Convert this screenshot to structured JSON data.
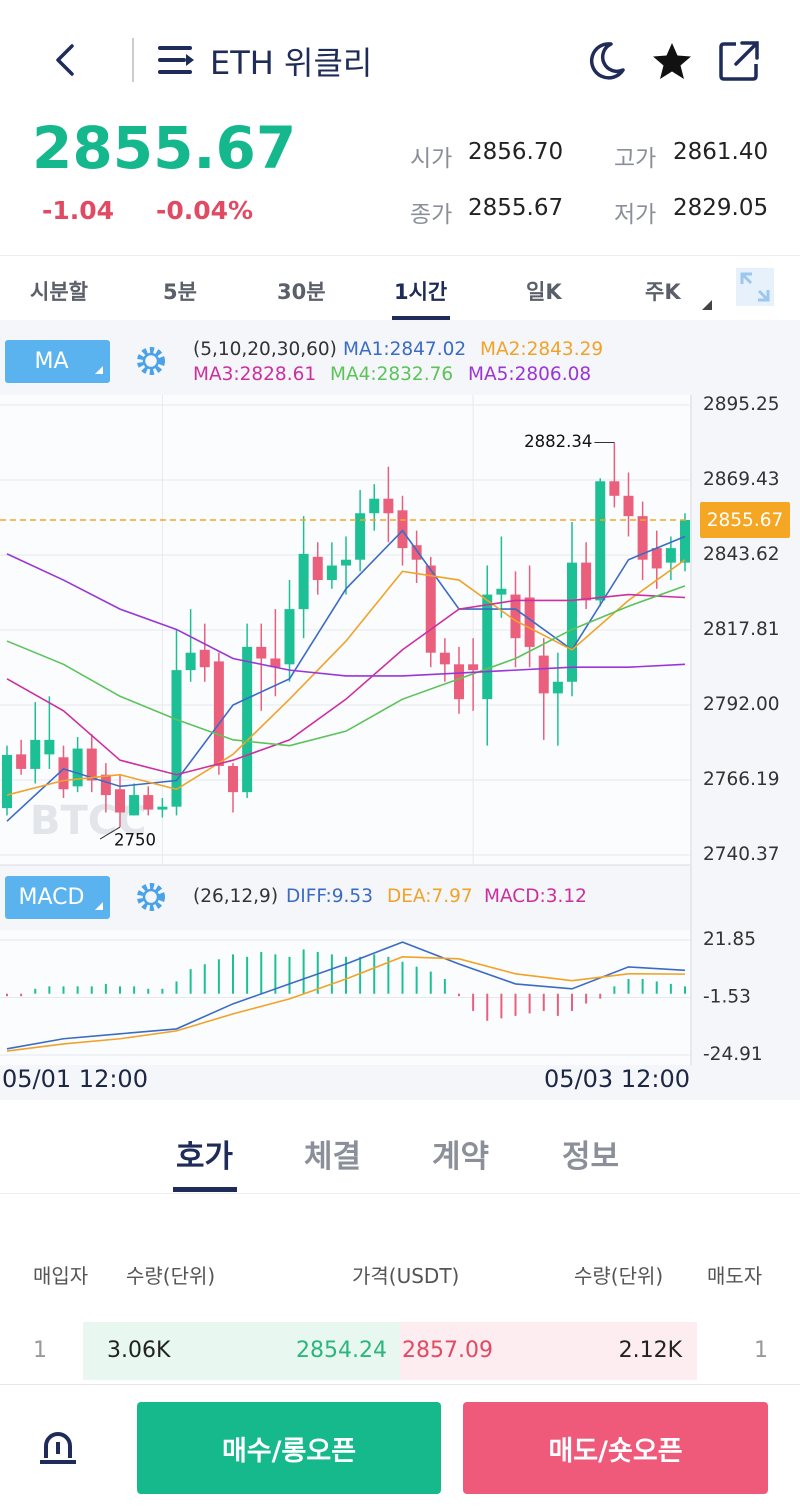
{
  "header": {
    "title": "ETH 위클리"
  },
  "quote": {
    "price": "2855.67",
    "change": "-1.04",
    "change_pct": "-0.04%",
    "stats": [
      {
        "label": "시가",
        "value": "2856.70"
      },
      {
        "label": "고가",
        "value": "2861.40"
      },
      {
        "label": "종가",
        "value": "2855.67"
      },
      {
        "label": "저가",
        "value": "2829.05"
      }
    ]
  },
  "intervals": [
    "시분할",
    "5분",
    "30분",
    "1시간",
    "일K",
    "주K"
  ],
  "active_interval": 3,
  "chart_data": [
    {
      "type": "candlestick",
      "indicator": "MA",
      "params": "(5,10,20,30,60)",
      "watermark": "BTCC",
      "up_color": "#1cc094",
      "down_color": "#ea5f7c",
      "ylim": [
        2740.37,
        2895.25
      ],
      "yticks": [
        2740.37,
        2766.19,
        {
          "value": 2792,
          "label": "2792.00"
        },
        2817.81,
        2843.62,
        2869.43,
        2895.25
      ],
      "xticks": [
        {
          "value": 11,
          "label": "05/01 12:00"
        },
        {
          "value": 33,
          "label": "05/03 12:00"
        }
      ],
      "last_price": 2855.67,
      "candles": [
        {
          "open": 2756.5,
          "high": 2778,
          "low": 2754,
          "close": 2774.8
        },
        {
          "open": 2775,
          "high": 2780,
          "low": 2768,
          "close": 2770
        },
        {
          "open": 2770,
          "high": 2793,
          "low": 2765,
          "close": 2780
        },
        {
          "open": 2775,
          "high": 2795,
          "low": 2770,
          "close": 2780
        },
        {
          "open": 2774,
          "high": 2778,
          "low": 2760,
          "close": 2763
        },
        {
          "open": 2764,
          "high": 2781,
          "low": 2762,
          "close": 2777
        },
        {
          "open": 2777,
          "high": 2782,
          "low": 2762,
          "close": 2766
        },
        {
          "open": 2768,
          "high": 2772,
          "low": 2755,
          "close": 2761
        },
        {
          "open": 2763,
          "high": 2768,
          "low": 2750,
          "close": 2755
        },
        {
          "open": 2754,
          "high": 2765,
          "low": 2754,
          "close": 2761
        },
        {
          "open": 2761,
          "high": 2764,
          "low": 2754,
          "close": 2756
        },
        {
          "open": 2756,
          "high": 2760,
          "low": 2753.28,
          "close": 2757
        },
        {
          "open": 2757,
          "high": 2818,
          "low": 2754,
          "close": 2804
        },
        {
          "open": 2804,
          "high": 2825,
          "low": 2800,
          "close": 2810
        },
        {
          "open": 2811,
          "high": 2820,
          "low": 2800,
          "close": 2805
        },
        {
          "open": 2807,
          "high": 2810,
          "low": 2768,
          "close": 2771
        },
        {
          "open": 2771,
          "high": 2772,
          "low": 2755,
          "close": 2762
        },
        {
          "open": 2762,
          "high": 2820,
          "low": 2760,
          "close": 2812
        },
        {
          "open": 2812,
          "high": 2820,
          "low": 2790,
          "close": 2808
        },
        {
          "open": 2808,
          "high": 2825,
          "low": 2795,
          "close": 2805
        },
        {
          "open": 2806,
          "high": 2835,
          "low": 2800,
          "close": 2825
        },
        {
          "open": 2825,
          "high": 2857,
          "low": 2815,
          "close": 2844
        },
        {
          "open": 2843,
          "high": 2848,
          "low": 2830,
          "close": 2835
        },
        {
          "open": 2835,
          "high": 2848,
          "low": 2832,
          "close": 2840
        },
        {
          "open": 2840,
          "high": 2850,
          "low": 2830,
          "close": 2842
        },
        {
          "open": 2842,
          "high": 2866,
          "low": 2838,
          "close": 2858
        },
        {
          "open": 2858,
          "high": 2868,
          "low": 2852,
          "close": 2863
        },
        {
          "open": 2863,
          "high": 2874,
          "low": 2848,
          "close": 2858
        },
        {
          "open": 2859,
          "high": 2864,
          "low": 2840,
          "close": 2846
        },
        {
          "open": 2847,
          "high": 2852,
          "low": 2834,
          "close": 2842
        },
        {
          "open": 2840,
          "high": 2843,
          "low": 2805,
          "close": 2810
        },
        {
          "open": 2810,
          "high": 2815,
          "low": 2800,
          "close": 2806
        },
        {
          "open": 2806,
          "high": 2812,
          "low": 2789,
          "close": 2794
        },
        {
          "open": 2806,
          "high": 2815,
          "low": 2790,
          "close": 2804
        },
        {
          "open": 2794,
          "high": 2840,
          "low": 2778,
          "close": 2830
        },
        {
          "open": 2830,
          "high": 2850,
          "low": 2822,
          "close": 2832
        },
        {
          "open": 2830,
          "high": 2838,
          "low": 2805,
          "close": 2815
        },
        {
          "open": 2829,
          "high": 2840,
          "low": 2805,
          "close": 2812
        },
        {
          "open": 2809,
          "high": 2815,
          "low": 2780,
          "close": 2796
        },
        {
          "open": 2796,
          "high": 2810,
          "low": 2778,
          "close": 2800
        },
        {
          "open": 2800,
          "high": 2855,
          "low": 2795,
          "close": 2841
        },
        {
          "open": 2841,
          "high": 2848,
          "low": 2825,
          "close": 2828
        },
        {
          "open": 2828,
          "high": 2870,
          "low": 2826,
          "close": 2869
        },
        {
          "open": 2869,
          "high": 2882.34,
          "low": 2860,
          "close": 2864
        },
        {
          "open": 2864,
          "high": 2872,
          "low": 2850,
          "close": 2857
        },
        {
          "open": 2857,
          "high": 2862,
          "low": 2835,
          "close": 2842
        },
        {
          "open": 2846,
          "high": 2852,
          "low": 2832,
          "close": 2839
        },
        {
          "open": 2841,
          "high": 2850,
          "low": 2835,
          "close": 2846
        },
        {
          "open": 2841,
          "high": 2858,
          "low": 2838,
          "close": 2855.67
        }
      ],
      "ma_x": [
        0,
        4,
        8,
        12,
        16,
        20,
        24,
        28,
        32,
        36,
        40,
        44,
        48
      ],
      "series": [
        {
          "name": "MA1:2847.02",
          "color": "#3b6cc4",
          "values": [
            2752,
            2770,
            2764,
            2766,
            2792,
            2801,
            2832,
            2852,
            2825,
            2825,
            2811,
            2842,
            2850
          ]
        },
        {
          "name": "MA2:2843.29",
          "color": "#f0a328",
          "values": [
            2761,
            2766,
            2768,
            2763,
            2775,
            2794,
            2814,
            2838,
            2835,
            2821,
            2811,
            2828,
            2842
          ]
        },
        {
          "name": "MA3:2828.61",
          "color": "#cc2fa0",
          "values": [
            2801,
            2790,
            2773,
            2768,
            2773,
            2780,
            2794,
            2811,
            2825,
            2828,
            2828,
            2830,
            2829
          ]
        },
        {
          "name": "MA4:2832.76",
          "color": "#5cc35a",
          "values": [
            2814,
            2806,
            2795,
            2787,
            2780,
            2778,
            2783,
            2794,
            2801,
            2808,
            2818,
            2826,
            2833
          ]
        },
        {
          "name": "MA5:2806.08",
          "color": "#9a36d6",
          "values": [
            2844,
            2835,
            2825,
            2818,
            2808,
            2804,
            2802,
            2802,
            2803,
            2804,
            2805,
            2805,
            2806
          ]
        }
      ]
    },
    {
      "type": "macd",
      "indicator": "MACD",
      "params": "(26,12,9)",
      "up_color": "#1cc094",
      "down_color": "#ea5f7c",
      "ylim": [
        -24.91,
        21.85
      ],
      "yticks": [
        -24.91,
        -1.53,
        21.85
      ],
      "histogram_name": "MACD:3.12",
      "histogram": [
        -1,
        -1,
        2,
        3,
        3,
        3,
        3,
        4,
        3,
        3,
        2,
        2,
        5,
        10,
        12,
        14,
        16,
        15,
        17,
        16,
        15,
        18,
        17,
        16,
        15,
        15,
        16,
        15,
        13,
        11,
        9,
        6,
        -1,
        -7,
        -11,
        -10,
        -9,
        -8,
        -7,
        -9,
        -7,
        -4,
        -2,
        3,
        6,
        6,
        5,
        4,
        3
      ],
      "ma_x": [
        0,
        4,
        8,
        12,
        16,
        20,
        24,
        28,
        32,
        36,
        40,
        44,
        48
      ],
      "series": [
        {
          "name": "DIFF:9.53",
          "color": "#3b6cc4",
          "values": [
            -22.4,
            -18.3,
            -16.3,
            -14.3,
            -4.1,
            4,
            12.1,
            21,
            12.1,
            4,
            2,
            10.9,
            9.53
          ]
        },
        {
          "name": "DEA:7.97",
          "color": "#f0a328",
          "values": [
            -23.3,
            -20.4,
            -18.3,
            -15.1,
            -8.2,
            -2.1,
            6,
            15,
            14.2,
            8.1,
            5.3,
            8.1,
            7.97
          ]
        }
      ]
    }
  ],
  "tabs": [
    "호가",
    "체결",
    "계약",
    "정보"
  ],
  "active_tab": 0,
  "orderbook": {
    "columns": [
      "매입자",
      "수량(단위)",
      "가격(USDT)",
      "수량(단위)",
      "매도자"
    ],
    "rows": [
      [
        "1",
        "3.06K",
        "2854.24",
        "2857.09",
        "2.12K",
        "1"
      ]
    ]
  },
  "buttons": [
    "매수/롱오픈",
    "매도/숏오픈"
  ]
}
